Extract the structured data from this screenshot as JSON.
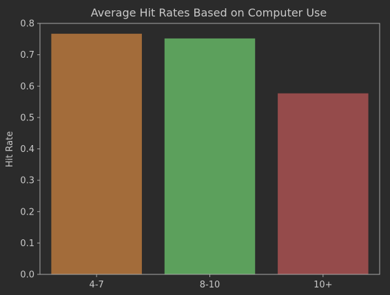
{
  "chart_data": {
    "type": "bar",
    "title": "Average Hit Rates Based on Computer Use",
    "xlabel": "",
    "ylabel": "Hit Rate",
    "categories": [
      "4-7",
      "8-10",
      "10+"
    ],
    "values": [
      0.767,
      0.752,
      0.577
    ],
    "colors": [
      "#a36c3a",
      "#5ca05c",
      "#954b4b"
    ],
    "ylim": [
      0,
      0.8
    ],
    "yticks": [
      0.0,
      0.1,
      0.2,
      0.3,
      0.4,
      0.5,
      0.6,
      0.7,
      0.8
    ],
    "ytick_labels": [
      "0.0",
      "0.1",
      "0.2",
      "0.3",
      "0.4",
      "0.5",
      "0.6",
      "0.7",
      "0.8"
    ],
    "grid": false,
    "background": "#2b2b2b",
    "axis_color": "#aaaaaa",
    "text_color": "#c8c8c8"
  }
}
